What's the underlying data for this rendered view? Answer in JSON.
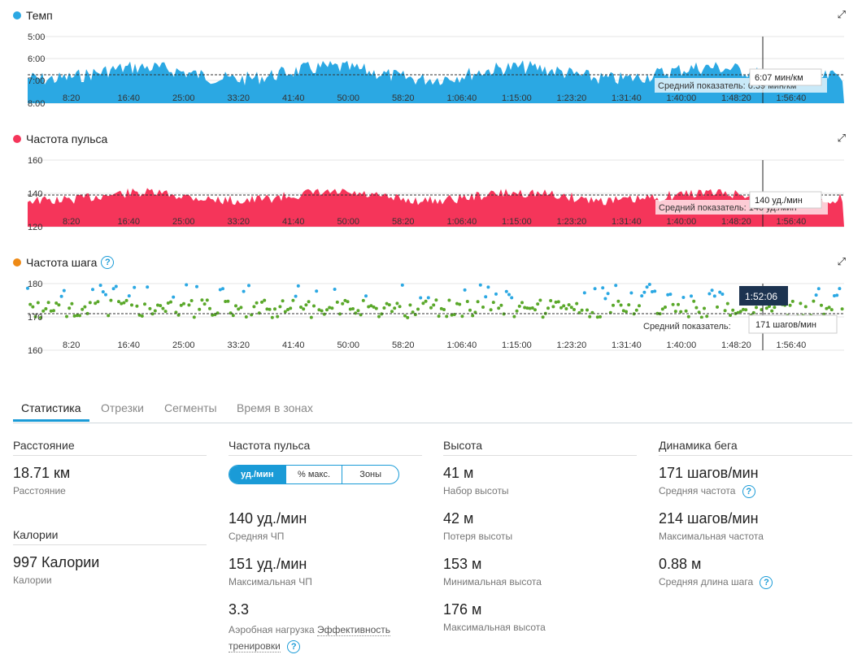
{
  "charts": {
    "pace": {
      "title": "Темп",
      "color": "#2ba8e3",
      "yticks": [
        "5:00",
        "6:00",
        "7:00",
        "8:00"
      ],
      "avg_label": "Средний показатель: 6:39 мин/км",
      "tooltip": "6:07 мин/км"
    },
    "hr": {
      "title": "Частота пульса",
      "color": "#f5355a",
      "yticks": [
        "160",
        "140",
        "120"
      ],
      "avg_label": "Средний показатель: 140 уд./мин",
      "tooltip": "140 уд./мин"
    },
    "cadence": {
      "title": "Частота шага",
      "help": "?",
      "yticks": [
        "180",
        "170",
        "160"
      ],
      "avg_label": "Средний показатель:",
      "tooltip": "171 шагов/мин",
      "time_badge": "1:52:06"
    },
    "xticks": [
      "8:20",
      "16:40",
      "25:00",
      "33:20",
      "41:40",
      "50:00",
      "58:20",
      "1:06:40",
      "1:15:00",
      "1:23:20",
      "1:31:40",
      "1:40:00",
      "1:48:20",
      "1:56:40"
    ]
  },
  "tabs": [
    "Статистика",
    "Отрезки",
    "Сегменты",
    "Время в зонах"
  ],
  "stats": {
    "distance": {
      "head": "Расстояние",
      "value": "18.71 км",
      "label": "Расстояние"
    },
    "calories": {
      "head": "Калории",
      "value": "997 Калории",
      "label": "Калории"
    },
    "heart": {
      "head": "Частота пульса",
      "toggle": [
        "уд./мин",
        "% макс.",
        "Зоны"
      ],
      "avg": {
        "value": "140 уд./мин",
        "label": "Средняя ЧП"
      },
      "max": {
        "value": "151 уд./мин",
        "label": "Максимальная ЧП"
      },
      "te": {
        "value": "3.3",
        "label": "Аэробная нагрузка",
        "link1": "Эффективность",
        "link2": "тренировки"
      }
    },
    "elevation": {
      "head": "Высота",
      "gain": {
        "value": "41 м",
        "label": "Набор высоты"
      },
      "loss": {
        "value": "42 м",
        "label": "Потеря высоты"
      },
      "min": {
        "value": "153 м",
        "label": "Минимальная высота"
      },
      "max": {
        "value": "176 м",
        "label": "Максимальная высота"
      }
    },
    "dynamics": {
      "head": "Динамика бега",
      "avg_cad": {
        "value": "171 шагов/мин",
        "label": "Средняя частота"
      },
      "max_cad": {
        "value": "214 шагов/мин",
        "label": "Максимальная частота"
      },
      "stride": {
        "value": "0.88 м",
        "label": "Средняя длина шага"
      }
    }
  }
}
